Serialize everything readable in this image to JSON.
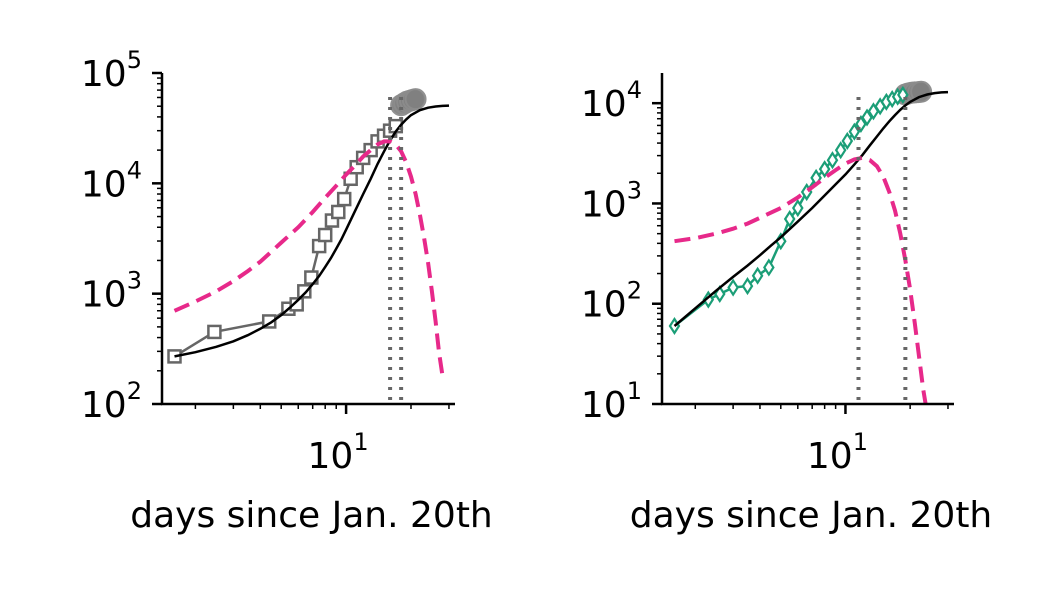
{
  "chart_data": [
    {
      "type": "line",
      "xlabel": "days since Jan. 20th",
      "ylabel": "",
      "x_scale": "log",
      "y_scale": "log",
      "xlim": [
        1.4,
        32
      ],
      "ylim": [
        100,
        100000
      ],
      "xticks": [
        {
          "value": 10,
          "base": "10",
          "exp": "1"
        }
      ],
      "yticks": [
        {
          "value": 100,
          "base": "10",
          "exp": "2"
        },
        {
          "value": 1000,
          "base": "10",
          "exp": "3"
        },
        {
          "value": 10000,
          "base": "10",
          "exp": "4"
        },
        {
          "value": 100000,
          "base": "10",
          "exp": "5"
        }
      ],
      "colors": {
        "data": "#666666",
        "fit": "#000000",
        "rate": "#e7298a",
        "vline": "#666666",
        "excluded": "#808080"
      },
      "vlines": [
        16,
        18
      ],
      "series": [
        {
          "role": "observed",
          "marker": "square",
          "points": [
            [
              1.6,
              270
            ],
            [
              2.45,
              450
            ],
            [
              4.4,
              560
            ],
            [
              5.4,
              730
            ],
            [
              5.9,
              800
            ],
            [
              6.4,
              1050
            ],
            [
              6.9,
              1400
            ],
            [
              7.5,
              2700
            ],
            [
              8.0,
              3400
            ],
            [
              8.6,
              4600
            ],
            [
              9.2,
              5500
            ],
            [
              9.8,
              7200
            ],
            [
              10.5,
              11000
            ],
            [
              11.2,
              14000
            ],
            [
              12.0,
              17000
            ],
            [
              13.0,
              20000
            ],
            [
              14.0,
              24000
            ],
            [
              15.0,
              27000
            ],
            [
              16.0,
              30000
            ],
            [
              17.0,
              33000
            ]
          ]
        },
        {
          "role": "excluded",
          "marker": "circle",
          "points": [
            [
              18.0,
              51000
            ],
            [
              18.6,
              53000
            ],
            [
              19.2,
              55000
            ],
            [
              19.8,
              56000
            ],
            [
              20.4,
              57000
            ],
            [
              21.0,
              58000
            ]
          ]
        },
        {
          "role": "fit",
          "points": [
            [
              1.6,
              270
            ],
            [
              2,
              295
            ],
            [
              2.5,
              330
            ],
            [
              3,
              370
            ],
            [
              3.5,
              420
            ],
            [
              4,
              480
            ],
            [
              4.5,
              550
            ],
            [
              5,
              640
            ],
            [
              5.5,
              750
            ],
            [
              6,
              880
            ],
            [
              6.5,
              1030
            ],
            [
              7,
              1220
            ],
            [
              7.5,
              1450
            ],
            [
              8,
              1750
            ],
            [
              8.5,
              2100
            ],
            [
              9,
              2550
            ],
            [
              9.5,
              3100
            ],
            [
              10,
              3800
            ],
            [
              11,
              5600
            ],
            [
              12,
              8000
            ],
            [
              13,
              11000
            ],
            [
              14,
              15000
            ],
            [
              15,
              19500
            ],
            [
              16,
              24500
            ],
            [
              17,
              29500
            ],
            [
              18,
              34000
            ],
            [
              19,
              38000
            ],
            [
              20,
              41500
            ],
            [
              22,
              46000
            ],
            [
              24,
              48500
            ],
            [
              26,
              49700
            ],
            [
              28,
              50300
            ],
            [
              30,
              50600
            ]
          ]
        },
        {
          "role": "rate",
          "points": [
            [
              1.6,
              700
            ],
            [
              2,
              850
            ],
            [
              2.5,
              1050
            ],
            [
              3,
              1300
            ],
            [
              3.5,
              1600
            ],
            [
              4,
              1950
            ],
            [
              4.5,
              2400
            ],
            [
              5,
              2900
            ],
            [
              6,
              4000
            ],
            [
              7,
              5500
            ],
            [
              8,
              7400
            ],
            [
              9,
              9500
            ],
            [
              10,
              12000
            ],
            [
              11,
              14500
            ],
            [
              12,
              17500
            ],
            [
              13,
              20000
            ],
            [
              14,
              22500
            ],
            [
              15,
              24000
            ],
            [
              16,
              24000
            ],
            [
              17,
              22500
            ],
            [
              18,
              19500
            ],
            [
              19,
              15500
            ],
            [
              20,
              11500
            ],
            [
              21,
              8000
            ],
            [
              22,
              5200
            ],
            [
              23,
              3200
            ],
            [
              24,
              1900
            ],
            [
              25,
              1050
            ],
            [
              26,
              560
            ],
            [
              27,
              290
            ],
            [
              28,
              180
            ]
          ]
        }
      ]
    },
    {
      "type": "line",
      "xlabel": "days since Jan. 20th",
      "ylabel": "",
      "x_scale": "log",
      "y_scale": "log",
      "xlim": [
        1.4,
        32
      ],
      "ylim": [
        10,
        20000
      ],
      "xticks": [
        {
          "value": 10,
          "base": "10",
          "exp": "1"
        }
      ],
      "yticks": [
        {
          "value": 10,
          "base": "10",
          "exp": "1"
        },
        {
          "value": 100,
          "base": "10",
          "exp": "2"
        },
        {
          "value": 1000,
          "base": "10",
          "exp": "3"
        },
        {
          "value": 10000,
          "base": "10",
          "exp": "4"
        }
      ],
      "colors": {
        "data": "#1b9e77",
        "fit": "#000000",
        "rate": "#e7298a",
        "vline": "#666666",
        "excluded": "#808080"
      },
      "vlines": [
        11.5,
        19
      ],
      "series": [
        {
          "role": "observed",
          "marker": "diamond",
          "points": [
            [
              1.6,
              60
            ],
            [
              2.3,
              110
            ],
            [
              2.6,
              125
            ],
            [
              3.0,
              145
            ],
            [
              3.5,
              150
            ],
            [
              3.9,
              190
            ],
            [
              4.4,
              230
            ],
            [
              5.0,
              420
            ],
            [
              5.5,
              700
            ],
            [
              6.0,
              900
            ],
            [
              6.6,
              1300
            ],
            [
              7.3,
              1800
            ],
            [
              8.0,
              2200
            ],
            [
              8.7,
              2700
            ],
            [
              9.5,
              3400
            ],
            [
              10.2,
              4200
            ],
            [
              11.0,
              5200
            ],
            [
              11.8,
              6200
            ],
            [
              12.6,
              7200
            ],
            [
              13.5,
              8300
            ],
            [
              14.5,
              9300
            ],
            [
              15.5,
              10300
            ],
            [
              16.5,
              11000
            ],
            [
              17.5,
              11600
            ],
            [
              18.5,
              12100
            ]
          ]
        },
        {
          "role": "excluded",
          "marker": "circle",
          "points": [
            [
              19.0,
              12200
            ],
            [
              19.6,
              12500
            ],
            [
              20.3,
              12700
            ],
            [
              21.0,
              12800
            ],
            [
              21.8,
              12900
            ],
            [
              22.5,
              13000
            ]
          ]
        },
        {
          "role": "fit",
          "points": [
            [
              1.6,
              60
            ],
            [
              2,
              90
            ],
            [
              2.5,
              135
            ],
            [
              3,
              185
            ],
            [
              3.5,
              240
            ],
            [
              4,
              305
            ],
            [
              4.5,
              380
            ],
            [
              5,
              460
            ],
            [
              6,
              660
            ],
            [
              7,
              900
            ],
            [
              8,
              1200
            ],
            [
              9,
              1550
            ],
            [
              10,
              1950
            ],
            [
              11,
              2450
            ],
            [
              12,
              3050
            ],
            [
              13,
              3800
            ],
            [
              14,
              4650
            ],
            [
              15,
              5600
            ],
            [
              16,
              6600
            ],
            [
              17,
              7600
            ],
            [
              18,
              8600
            ],
            [
              19,
              9500
            ],
            [
              20,
              10300
            ],
            [
              22,
              11500
            ],
            [
              24,
              12200
            ],
            [
              26,
              12600
            ],
            [
              28,
              12800
            ],
            [
              30,
              12900
            ]
          ]
        },
        {
          "role": "rate",
          "points": [
            [
              1.6,
              420
            ],
            [
              2,
              450
            ],
            [
              2.5,
              500
            ],
            [
              3,
              560
            ],
            [
              3.5,
              630
            ],
            [
              4,
              720
            ],
            [
              5,
              900
            ],
            [
              6,
              1150
            ],
            [
              7,
              1450
            ],
            [
              8,
              1800
            ],
            [
              9,
              2150
            ],
            [
              10,
              2500
            ],
            [
              11,
              2750
            ],
            [
              12,
              2850
            ],
            [
              13,
              2700
            ],
            [
              14,
              2350
            ],
            [
              15,
              1850
            ],
            [
              16,
              1300
            ],
            [
              17,
              850
            ],
            [
              18,
              500
            ],
            [
              19,
              270
            ],
            [
              20,
              140
            ],
            [
              21,
              65
            ],
            [
              22,
              30
            ],
            [
              23,
              14
            ],
            [
              23.8,
              9
            ]
          ]
        }
      ]
    }
  ]
}
